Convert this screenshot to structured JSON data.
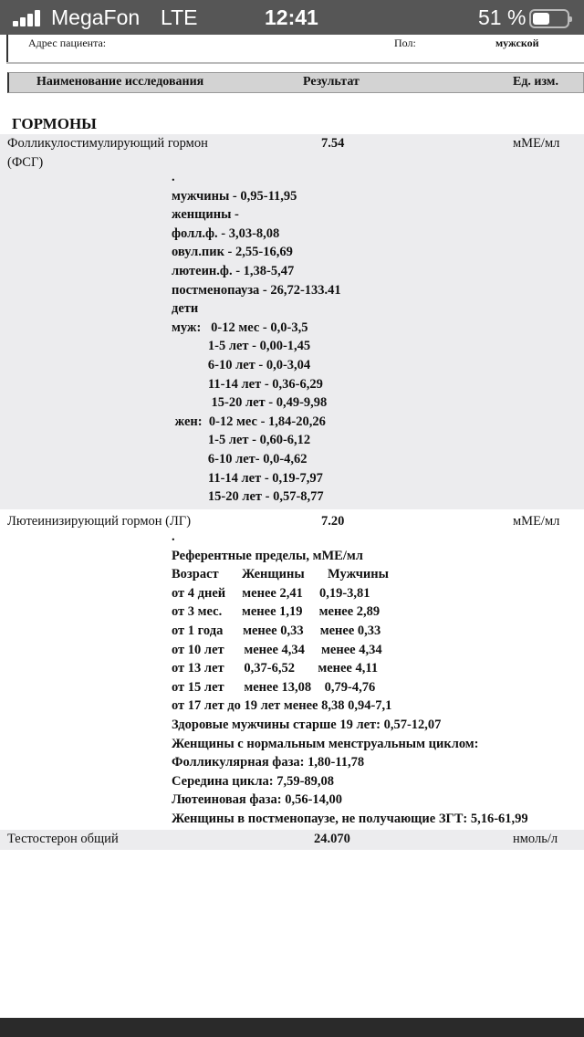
{
  "status_bar": {
    "carrier": "MegaFon",
    "network": "LTE",
    "time": "12:41",
    "battery": "51 %",
    "battery_level": 51
  },
  "patient": {
    "address_label": "Адрес пациента:",
    "sex_label": "Пол:",
    "sex_value": "мужской"
  },
  "table_header": {
    "name": "Наименование исследования",
    "result": "Результат",
    "unit": "Ед. изм."
  },
  "section": "ГОРМОНЫ",
  "tests": [
    {
      "name": "Фолликулостимулирующий гормон",
      "name2": "(ФСГ)",
      "result": "7.54",
      "unit": "мМЕ/мл",
      "reference": [
        ".",
        "мужчины - 0,95-11,95",
        "женщины -",
        "фолл.ф. - 3,03-8,08",
        "овул.пик - 2,55-16,69",
        "лютеин.ф. - 1,38-5,47",
        "постменопауза - 26,72-133.41",
        "дети",
        "муж:   0-12 мес - 0,0-3,5",
        "           1-5 лет - 0,00-1,45",
        "           6-10 лет - 0,0-3,04",
        "           11-14 лет - 0,36-6,29",
        "            15-20 лет - 0,49-9,98",
        " жен:  0-12 мес - 1,84-20,26",
        "           1-5 лет - 0,60-6,12",
        "           6-10 лет- 0,0-4,62",
        "           11-14 лет - 0,19-7,97",
        "           15-20 лет - 0,57-8,77"
      ]
    },
    {
      "name": "Лютеинизирующий гормон (ЛГ)",
      "result": "7.20",
      "unit": "мМЕ/мл",
      "reference": [
        ".",
        "Референтные пределы, мМЕ/мл",
        "Возраст       Женщины       Мужчины",
        "от 4 дней     менее 2,41     0,19-3,81",
        "от 3 мес.      менее 1,19     менее 2,89",
        "от 1 года      менее 0,33     менее 0,33",
        "от 10 лет      менее 4,34     менее 4,34",
        "от 13 лет      0,37-6,52       менее 4,11",
        "от 15 лет      менее 13,08    0,79-4,76",
        "от 17 лет до 19 лет менее 8,38 0,94-7,1",
        "Здоровые мужчины старше 19 лет: 0,57-12,07",
        "Женщины с нормальным менструальным циклом:",
        "Фолликулярная фаза: 1,80-11,78",
        "Середина цикла: 7,59-89,08",
        "Лютеиновая фаза: 0,56-14,00",
        "Женщины в постменопаузе, не получающие ЗГТ: 5,16-61,99"
      ]
    },
    {
      "name": "Тестостерон общий",
      "result": "24.070",
      "unit": "нмоль/л"
    }
  ]
}
